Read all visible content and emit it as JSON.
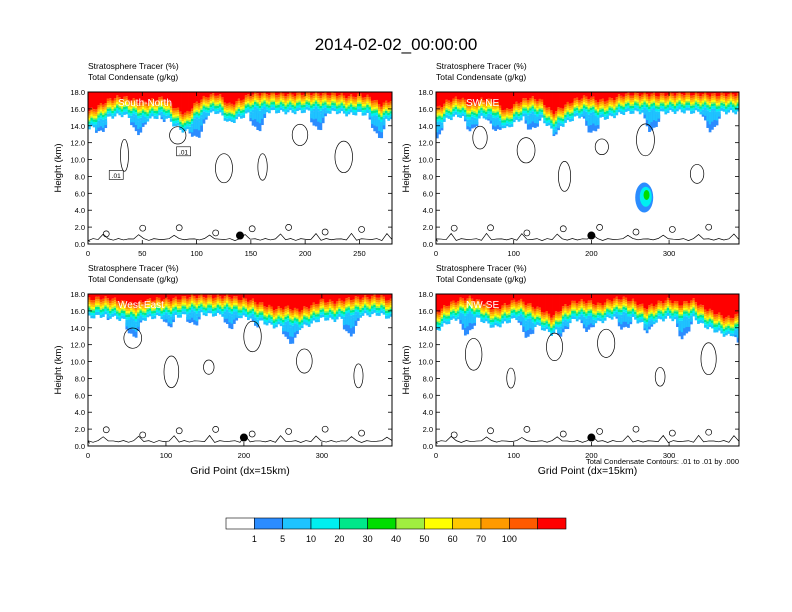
{
  "figure": {
    "title": "2014-02-02_00:00:00",
    "contour_note": "Total Condensate Contours: .01 to .01 by .000"
  },
  "colors": {
    "scale": [
      "#ffffff",
      "#2b8cff",
      "#1ec3ff",
      "#00f0f0",
      "#00e88a",
      "#00dd00",
      "#a0ee40",
      "#ffff00",
      "#ffc800",
      "#ff9a00",
      "#ff5a00",
      "#ff0000"
    ],
    "contour": "#000000",
    "marker": "#000000"
  },
  "colorbar": {
    "ticks": [
      "1",
      "5",
      "10",
      "20",
      "30",
      "40",
      "50",
      "60",
      "70",
      "100"
    ]
  },
  "chart_data": [
    {
      "type": "heatmap",
      "panel": "top-left",
      "label_line1": "Stratosphere Tracer   (%)",
      "label_line2": "Total Condensate   (g/kg)",
      "inset_label": "South-North",
      "ylabel": "Height (km)",
      "xlabel": "",
      "xlim": [
        0,
        280
      ],
      "ylim": [
        0,
        18
      ],
      "xticks": [
        "0",
        "50",
        "100",
        "150",
        "200",
        "250"
      ],
      "xtick_values": [
        0,
        50,
        100,
        150,
        200,
        250
      ],
      "yticks": [
        "0.0",
        "2.0",
        "4.0",
        "6.0",
        "8.0",
        "10.0",
        "12.0",
        "14.0",
        "16.0",
        "18.0"
      ],
      "tracer_profile": {
        "x": [
          0,
          10,
          20,
          30,
          40,
          50,
          60,
          70,
          80,
          90,
          100,
          110,
          120,
          130,
          140,
          150,
          160,
          170,
          180,
          190,
          200,
          210,
          220,
          230,
          240,
          250,
          260,
          270,
          280
        ],
        "base_km": [
          13.5,
          14.2,
          15.0,
          15.3,
          15.0,
          14.6,
          14.9,
          15.2,
          14.0,
          13.2,
          14.6,
          15.4,
          15.6,
          14.3,
          14.9,
          15.6,
          15.7,
          15.7,
          15.6,
          15.6,
          15.7,
          15.7,
          15.6,
          15.6,
          15.3,
          15.5,
          15.2,
          14.3,
          15.0
        ]
      },
      "contour_labels": [
        {
          "text": ".01",
          "x": 88,
          "y": 10.8
        },
        {
          "text": ".01",
          "x": 26,
          "y": 8.0
        }
      ],
      "marker": {
        "x": 140,
        "y": 1.0
      }
    },
    {
      "type": "heatmap",
      "panel": "top-right",
      "label_line1": "Stratosphere Tracer   (%)",
      "label_line2": "Total Condensate   (g/kg)",
      "inset_label": "SW-NE",
      "ylabel": "Height (km)",
      "xlabel": "",
      "xlim": [
        0,
        390
      ],
      "ylim": [
        0,
        18
      ],
      "xticks": [
        "0",
        "100",
        "200",
        "300"
      ],
      "xtick_values": [
        0,
        100,
        200,
        300
      ],
      "yticks": [
        "0.0",
        "2.0",
        "4.0",
        "6.0",
        "8.0",
        "10.0",
        "12.0",
        "14.0",
        "16.0",
        "18.0"
      ],
      "tracer_profile": {
        "x": [
          0,
          15,
          30,
          45,
          60,
          75,
          90,
          105,
          120,
          135,
          150,
          165,
          180,
          195,
          210,
          225,
          240,
          255,
          270,
          285,
          300,
          315,
          330,
          345,
          360,
          375,
          390
        ],
        "base_km": [
          13.8,
          14.8,
          15.2,
          14.4,
          15.0,
          14.8,
          13.6,
          14.6,
          15.2,
          14.9,
          13.4,
          14.2,
          15.0,
          15.3,
          14.8,
          15.0,
          15.5,
          15.6,
          15.6,
          15.5,
          15.6,
          15.7,
          15.6,
          15.6,
          15.5,
          15.6,
          15.6
        ]
      },
      "contour_labels": [],
      "marker": {
        "x": 200,
        "y": 1.0
      }
    },
    {
      "type": "heatmap",
      "panel": "bottom-left",
      "label_line1": "Stratosphere Tracer   (%)",
      "label_line2": "Total Condensate   (g/kg)",
      "inset_label": "West-East",
      "ylabel": "Height (km)",
      "xlabel": "Grid Point (dx=15km)",
      "xlim": [
        0,
        390
      ],
      "ylim": [
        0,
        18
      ],
      "xticks": [
        "0",
        "100",
        "200",
        "300"
      ],
      "xtick_values": [
        0,
        100,
        200,
        300
      ],
      "yticks": [
        "0.0",
        "2.0",
        "4.0",
        "6.0",
        "8.0",
        "10.0",
        "12.0",
        "14.0",
        "16.0",
        "18.0"
      ],
      "tracer_profile": {
        "x": [
          0,
          15,
          30,
          45,
          60,
          75,
          90,
          105,
          120,
          135,
          150,
          165,
          180,
          195,
          210,
          225,
          240,
          255,
          270,
          285,
          300,
          315,
          330,
          345,
          360,
          375,
          390
        ],
        "base_km": [
          15.2,
          15.4,
          15.3,
          14.9,
          14.6,
          15.1,
          15.3,
          15.2,
          15.4,
          15.6,
          15.6,
          15.5,
          15.6,
          15.3,
          15.1,
          14.6,
          14.1,
          14.3,
          13.9,
          14.4,
          15.1,
          14.9,
          15.2,
          15.4,
          15.5,
          15.6,
          15.0
        ]
      },
      "contour_labels": [],
      "marker": {
        "x": 200,
        "y": 1.0
      }
    },
    {
      "type": "heatmap",
      "panel": "bottom-right",
      "label_line1": "Stratosphere Tracer   (%)",
      "label_line2": "Total Condensate   (g/kg)",
      "inset_label": "NW-SE",
      "ylabel": "Height (km)",
      "xlabel": "Grid Point (dx=15km)",
      "xlim": [
        0,
        390
      ],
      "ylim": [
        0,
        18
      ],
      "xticks": [
        "0",
        "100",
        "200",
        "300"
      ],
      "xtick_values": [
        0,
        100,
        200,
        300
      ],
      "yticks": [
        "0.0",
        "2.0",
        "4.0",
        "6.0",
        "8.0",
        "10.0",
        "12.0",
        "14.0",
        "16.0",
        "18.0"
      ],
      "tracer_profile": {
        "x": [
          0,
          15,
          30,
          45,
          60,
          75,
          90,
          105,
          120,
          135,
          150,
          165,
          180,
          195,
          210,
          225,
          240,
          255,
          270,
          285,
          300,
          315,
          330,
          345,
          360,
          375,
          390
        ],
        "base_km": [
          13.6,
          14.6,
          15.2,
          15.4,
          14.8,
          14.0,
          14.6,
          15.2,
          14.6,
          14.0,
          13.2,
          14.4,
          15.0,
          15.0,
          14.6,
          15.2,
          15.4,
          15.0,
          14.2,
          14.8,
          15.2,
          14.6,
          15.2,
          14.2,
          13.6,
          13.0,
          13.4
        ]
      },
      "contour_labels": [],
      "marker": {
        "x": 200,
        "y": 1.0
      }
    }
  ]
}
